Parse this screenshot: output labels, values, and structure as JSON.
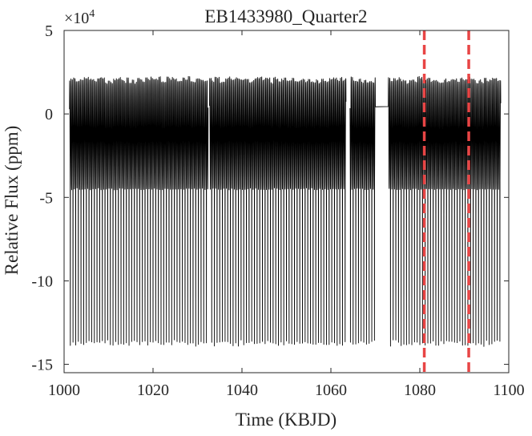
{
  "chart_data": {
    "type": "line",
    "title": "EB1433980_Quarter2",
    "xlabel": "Time (KBJD)",
    "ylabel": "Relative Flux (ppm)",
    "y_exponent_label": "×10",
    "y_exponent_power": "4",
    "xlim": [
      1000,
      1100
    ],
    "ylim": [
      -15.5,
      5
    ],
    "y_scale": 10000,
    "grid": false,
    "xticks": [
      {
        "value": 1000,
        "label": "1000"
      },
      {
        "value": 1020,
        "label": "1020"
      },
      {
        "value": 1040,
        "label": "1040"
      },
      {
        "value": 1060,
        "label": "1060"
      },
      {
        "value": 1080,
        "label": "1080"
      },
      {
        "value": 1100,
        "label": "1100"
      }
    ],
    "yticks": [
      {
        "value": 5,
        "label": "5"
      },
      {
        "value": 0,
        "label": "0"
      },
      {
        "value": -5,
        "label": "-5"
      },
      {
        "value": -10,
        "label": "-10"
      },
      {
        "value": -15,
        "label": "-15"
      }
    ],
    "series": [
      {
        "color": "#000000",
        "period_days": 0.6,
        "segments": [
          {
            "start": 1001.2,
            "end": 1032.4
          },
          {
            "start": 1032.7,
            "end": 1063.4
          },
          {
            "start": 1064.3,
            "end": 1070.0
          },
          {
            "start": 1072.9,
            "end": 1098.2
          }
        ],
        "gaps_bridged": [
          [
            1070.0,
            1072.9
          ]
        ],
        "max_flux_x1e4": 2.2,
        "secondary_min_x1e4": -4.5,
        "primary_min_x1e4": -15.0
      }
    ],
    "vlines": [
      {
        "x": 1081.0,
        "color": "#e84545",
        "style": "dashed"
      },
      {
        "x": 1091.0,
        "color": "#e84545",
        "style": "dashed"
      }
    ]
  }
}
